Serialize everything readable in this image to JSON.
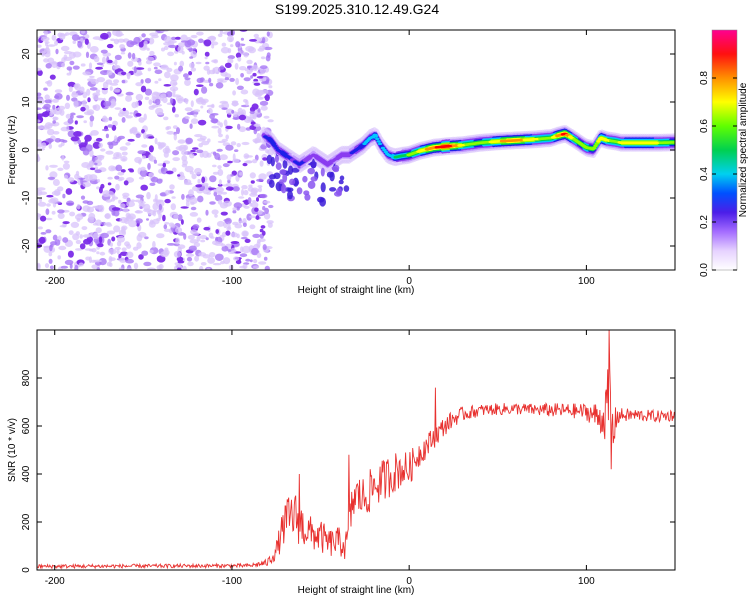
{
  "figure": {
    "title": "S199.2025.310.12.49.G24"
  },
  "chart_data": [
    {
      "type": "heatmap",
      "title": "S199.2025.310.12.49.G24",
      "xlabel": "Height of straight line (km)",
      "ylabel": "Frequency (Hz)",
      "xlim": [
        -210,
        150
      ],
      "ylim": [
        -25,
        25
      ],
      "x_ticks": [
        -200,
        -100,
        0,
        100
      ],
      "y_ticks": [
        -20,
        -10,
        0,
        10,
        20
      ],
      "x_tick_labels": [
        "-200",
        "-100",
        "0",
        "100"
      ],
      "y_tick_labels": [
        "-20",
        "-10",
        "0",
        "10",
        "20"
      ],
      "noise_region_x": [
        -210,
        -82
      ],
      "ridge_path": {
        "x": [
          -82,
          -78,
          -74,
          -70,
          -66,
          -62,
          -58,
          -54,
          -50,
          -46,
          -42,
          -38,
          -34,
          -30,
          -26,
          -22,
          -19,
          -16,
          -12,
          -8,
          -4,
          0,
          6,
          14,
          22,
          30,
          40,
          50,
          60,
          70,
          80,
          84,
          88,
          92,
          96,
          100,
          104,
          108,
          112,
          116,
          120,
          130,
          140,
          150
        ],
        "y": [
          3,
          2,
          0,
          -1,
          -2,
          -3,
          -2,
          -1,
          -2,
          -3,
          -2,
          -1,
          -1,
          0,
          1,
          2.5,
          3,
          1,
          -1,
          -1.5,
          -1.2,
          -1,
          -0.2,
          0.5,
          0.8,
          1,
          1.5,
          1.8,
          2,
          2.2,
          2.5,
          3,
          3.4,
          2.5,
          1.5,
          0.5,
          0.2,
          2.5,
          2,
          1.8,
          1.5,
          1.5,
          1.5,
          1.6
        ],
        "amplitude": [
          0.3,
          0.4,
          0.35,
          0.4,
          0.3,
          0.35,
          0.3,
          0.25,
          0.3,
          0.3,
          0.25,
          0.3,
          0.3,
          0.35,
          0.4,
          0.45,
          0.5,
          0.4,
          0.45,
          0.5,
          0.55,
          0.6,
          0.7,
          0.85,
          0.95,
          0.7,
          0.6,
          0.75,
          0.85,
          0.7,
          0.65,
          0.8,
          0.9,
          0.7,
          0.6,
          0.65,
          0.6,
          0.75,
          0.7,
          0.65,
          0.7,
          0.75,
          0.7,
          0.6
        ]
      },
      "colorbar": {
        "label": "Normalized spectral amplitude",
        "range": [
          0,
          1
        ],
        "ticks": [
          0.0,
          0.2,
          0.4,
          0.6,
          0.8
        ],
        "tick_labels": [
          "0.0",
          "0.2",
          "0.4",
          "0.6",
          "0.8"
        ],
        "colors": [
          "#ffffff",
          "#e6d2ff",
          "#c29bff",
          "#8a3cf0",
          "#1e20e8",
          "#00c8ff",
          "#00d050",
          "#8cff00",
          "#ffff00",
          "#ff9000",
          "#ff0000",
          "#ff0090"
        ]
      }
    },
    {
      "type": "line",
      "xlabel": "Height of straight line (km)",
      "ylabel": "SNR (10 * v/v)",
      "xlim": [
        -210,
        150
      ],
      "ylim": [
        0,
        1000
      ],
      "x_ticks": [
        -200,
        -100,
        0,
        100
      ],
      "y_ticks": [
        0,
        200,
        400,
        600,
        800
      ],
      "x_tick_labels": [
        "-200",
        "-100",
        "0",
        "100"
      ],
      "y_tick_labels": [
        "0",
        "200",
        "400",
        "600",
        "800"
      ],
      "series": [
        {
          "name": "SNR",
          "color": "#e8312f",
          "envelope": {
            "x": [
              -210,
              -90,
              -80,
              -75,
              -70,
              -65,
              -60,
              -55,
              -50,
              -45,
              -40,
              -35,
              -32,
              -30,
              -25,
              -20,
              -15,
              -10,
              -5,
              0,
              5,
              10,
              15,
              20,
              25,
              30,
              40,
              50,
              60,
              70,
              80,
              90,
              100,
              106,
              110,
              113,
              115,
              117,
              120,
              130,
              140,
              150
            ],
            "y": [
              15,
              18,
              30,
              80,
              200,
              230,
              180,
              150,
              140,
              110,
              120,
              100,
              280,
              310,
              300,
              350,
              370,
              400,
              420,
              420,
              480,
              520,
              560,
              600,
              630,
              650,
              665,
              670,
              672,
              668,
              666,
              664,
              660,
              640,
              630,
              700,
              560,
              640,
              645,
              645,
              640,
              645
            ],
            "noise": [
              8,
              8,
              15,
              40,
              90,
              110,
              90,
              70,
              70,
              60,
              60,
              70,
              90,
              90,
              90,
              90,
              90,
              90,
              80,
              70,
              60,
              50,
              45,
              40,
              35,
              30,
              25,
              25,
              25,
              25,
              30,
              30,
              35,
              60,
              80,
              200,
              120,
              40,
              30,
              25,
              25,
              25
            ]
          },
          "spikes": [
            {
              "x": -62,
              "y": 400
            },
            {
              "x": -34,
              "y": 480
            },
            {
              "x": 15,
              "y": 760
            },
            {
              "x": 113,
              "y": 1000
            },
            {
              "x": 114,
              "y": 420
            }
          ]
        }
      ]
    }
  ]
}
